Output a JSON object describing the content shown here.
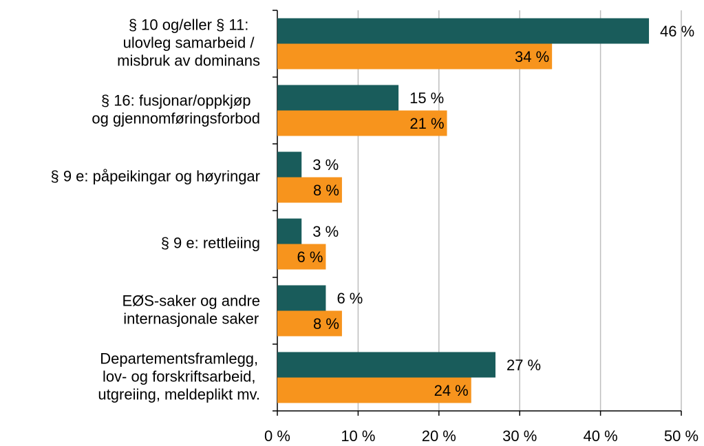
{
  "chart_data": {
    "type": "bar",
    "orientation": "horizontal",
    "categories": [
      "§ 10 og/eller § 11:\nulovleg samarbeid /\nmisbruk av dominans",
      "§ 16: fusjonar/oppkjøp\nog gjennomføringsforbod",
      "§ 9 e: påpeikingar og høyringar",
      "§ 9 e: rettleiing",
      "EØS-saker og andre\ninternasjonale saker",
      "Departementsframlegg,\nlov- og forskriftsarbeid,\nutgreiing, meldeplikt mv."
    ],
    "series": [
      {
        "color": "#195c5b",
        "values": [
          46,
          15,
          3,
          3,
          6,
          27
        ],
        "value_labels": [
          "46 %",
          "15 %",
          "3 %",
          "3 %",
          "6 %",
          "27 %"
        ],
        "label_position": "outside"
      },
      {
        "color": "#f7941d",
        "values": [
          34,
          21,
          8,
          6,
          8,
          24
        ],
        "value_labels": [
          "34 %",
          "21 %",
          "8 %",
          "6 %",
          "8 %",
          "24 %"
        ],
        "label_position": "inside"
      }
    ],
    "xlim": [
      0,
      50
    ],
    "xticks": [
      {
        "value": 0,
        "label": "0 %"
      },
      {
        "value": 10,
        "label": "10 %"
      },
      {
        "value": 20,
        "label": "20 %"
      },
      {
        "value": 30,
        "label": "30 %"
      },
      {
        "value": 40,
        "label": "40 %"
      },
      {
        "value": 50,
        "label": "50 %"
      }
    ],
    "grid": true
  }
}
